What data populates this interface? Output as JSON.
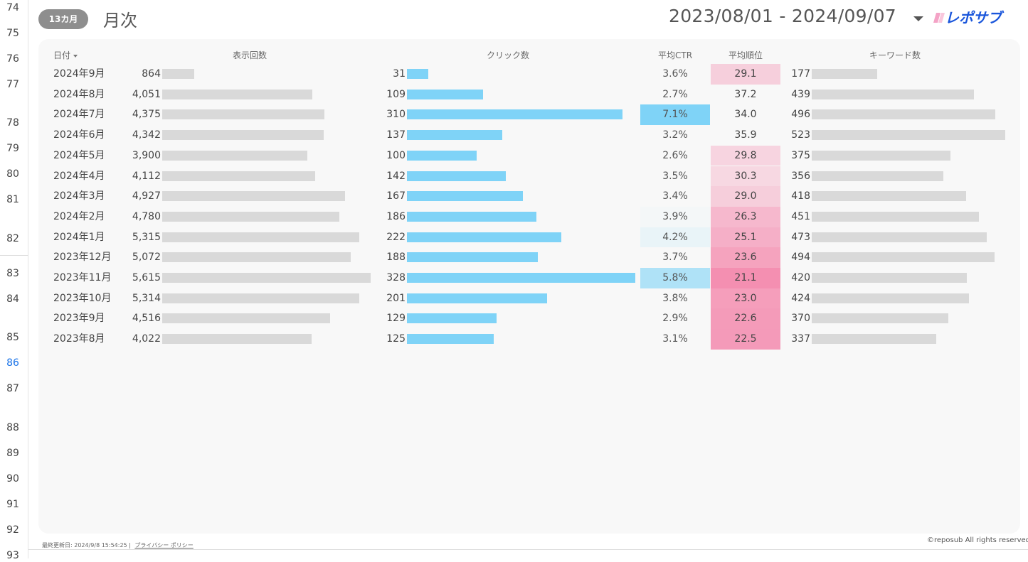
{
  "gutter_rows": [
    "74",
    "75",
    "76",
    "77",
    "78",
    "79",
    "80",
    "81",
    "82",
    "83",
    "84",
    "85",
    "86",
    "87",
    "88",
    "89",
    "90",
    "91",
    "92",
    "93"
  ],
  "gutter_active": "86",
  "header": {
    "period_pill": "13カ月",
    "title": "月次",
    "date_range": "2023/08/01 - 2024/09/07",
    "logo_text": "レポサブ",
    "colors": {
      "pill_bg": "#8e8e8e",
      "logo_blue": "#1a56db",
      "logo_pink": "#f4a3c6"
    }
  },
  "table": {
    "columns": {
      "date": "日付",
      "impressions": "表示回数",
      "clicks": "クリック数",
      "ctr": "平均CTR",
      "position": "平均順位",
      "keywords": "キーワード数"
    },
    "rows": [
      {
        "date": "2024年9月",
        "impressions": "864",
        "clicks": "31",
        "ctr": "3.6%",
        "position": "29.1",
        "keywords": "177"
      },
      {
        "date": "2024年8月",
        "impressions": "4,051",
        "clicks": "109",
        "ctr": "2.7%",
        "position": "37.2",
        "keywords": "439"
      },
      {
        "date": "2024年7月",
        "impressions": "4,375",
        "clicks": "310",
        "ctr": "7.1%",
        "position": "34.0",
        "keywords": "496"
      },
      {
        "date": "2024年6月",
        "impressions": "4,342",
        "clicks": "137",
        "ctr": "3.2%",
        "position": "35.9",
        "keywords": "523"
      },
      {
        "date": "2024年5月",
        "impressions": "3,900",
        "clicks": "100",
        "ctr": "2.6%",
        "position": "29.8",
        "keywords": "375"
      },
      {
        "date": "2024年4月",
        "impressions": "4,112",
        "clicks": "142",
        "ctr": "3.5%",
        "position": "30.3",
        "keywords": "356"
      },
      {
        "date": "2024年3月",
        "impressions": "4,927",
        "clicks": "167",
        "ctr": "3.4%",
        "position": "29.0",
        "keywords": "418"
      },
      {
        "date": "2024年2月",
        "impressions": "4,780",
        "clicks": "186",
        "ctr": "3.9%",
        "position": "26.3",
        "keywords": "451"
      },
      {
        "date": "2024年1月",
        "impressions": "5,315",
        "clicks": "222",
        "ctr": "4.2%",
        "position": "25.1",
        "keywords": "473"
      },
      {
        "date": "2023年12月",
        "impressions": "5,072",
        "clicks": "188",
        "ctr": "3.7%",
        "position": "23.6",
        "keywords": "494"
      },
      {
        "date": "2023年11月",
        "impressions": "5,615",
        "clicks": "328",
        "ctr": "5.8%",
        "position": "21.1",
        "keywords": "420"
      },
      {
        "date": "2023年10月",
        "impressions": "5,314",
        "clicks": "201",
        "ctr": "3.8%",
        "position": "23.0",
        "keywords": "424"
      },
      {
        "date": "2023年9月",
        "impressions": "4,516",
        "clicks": "129",
        "ctr": "2.9%",
        "position": "22.6",
        "keywords": "370"
      },
      {
        "date": "2023年8月",
        "impressions": "4,022",
        "clicks": "125",
        "ctr": "3.1%",
        "position": "22.5",
        "keywords": "337"
      }
    ],
    "colors": {
      "impressions_bar": "#d9d9d9",
      "clicks_bar": "#7fd3f7",
      "keywords_bar": "#d9d9d9",
      "ctr_heat": "#7fd3f7",
      "position_heat": "#f48fb1"
    }
  },
  "footer": {
    "last_updated": "最終更新日: 2024/9/8 15:54:25",
    "privacy_link": "プライバシー ポリシー",
    "copyright": "©reposub All rights reserved."
  }
}
